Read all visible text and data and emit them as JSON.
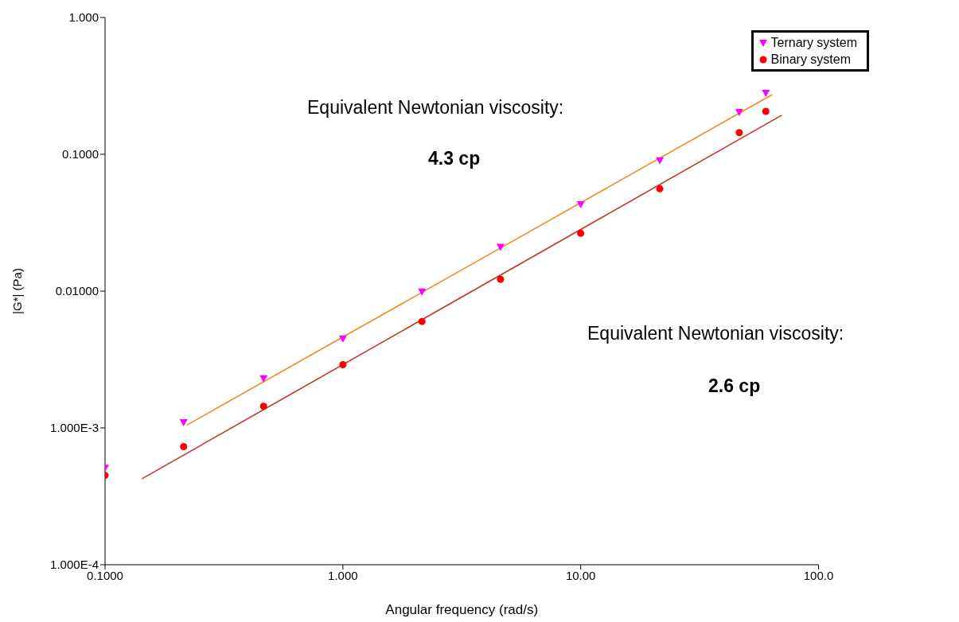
{
  "chart_data": {
    "type": "scatter",
    "xlabel": "Angular frequency (rad/s)",
    "ylabel": "|G*| (Pa)",
    "log": "xy",
    "xlim": [
      0.1,
      100
    ],
    "ylim": [
      0.0001,
      1
    ],
    "xticks": [
      {
        "value": 0.1,
        "label": "0.1000"
      },
      {
        "value": 1,
        "label": "1.000"
      },
      {
        "value": 10,
        "label": "10.00"
      },
      {
        "value": 100,
        "label": "100.0"
      }
    ],
    "yticks": [
      {
        "value": 0.0001,
        "label": "1.000E-4"
      },
      {
        "value": 0.001,
        "label": "1.000E-3"
      },
      {
        "value": 0.01,
        "label": "0.01000"
      },
      {
        "value": 0.1,
        "label": "0.1000"
      },
      {
        "value": 1,
        "label": "1.000"
      }
    ],
    "grid": false,
    "legend": "top right",
    "series": [
      {
        "name": "Ternary system",
        "type": "scatter",
        "marker": "triangle",
        "color": "#ff00ff",
        "x": [
          0.1,
          0.214,
          0.464,
          1,
          2.15,
          4.6,
          10,
          21.5,
          46.4,
          60
        ],
        "values": [
          0.00051,
          0.0011,
          0.0023,
          0.0045,
          0.0099,
          0.021,
          0.043,
          0.09,
          0.203,
          0.28
        ]
      },
      {
        "name": "Binary system",
        "type": "scatter",
        "marker": "circle",
        "color": "#ff0000",
        "x": [
          0.1,
          0.214,
          0.464,
          1,
          2.15,
          4.6,
          10,
          21.5,
          46.4,
          60
        ],
        "values": [
          0.00045,
          0.00073,
          0.00144,
          0.0029,
          0.006,
          0.0122,
          0.0265,
          0.056,
          0.144,
          0.206
        ]
      },
      {
        "type": "line",
        "color": "#f28c28",
        "x": [
          0.221,
          63.8
        ],
        "values": [
          0.00105,
          0.273
        ]
      },
      {
        "type": "line",
        "color": "#c0392b",
        "x": [
          0.143,
          70
        ],
        "values": [
          0.000425,
          0.193
        ]
      }
    ],
    "annotations": [
      "Equivalent Newtonian viscosity:",
      "4.3 cp",
      "Equivalent Newtonian viscosity:",
      "2.6 cp"
    ]
  }
}
